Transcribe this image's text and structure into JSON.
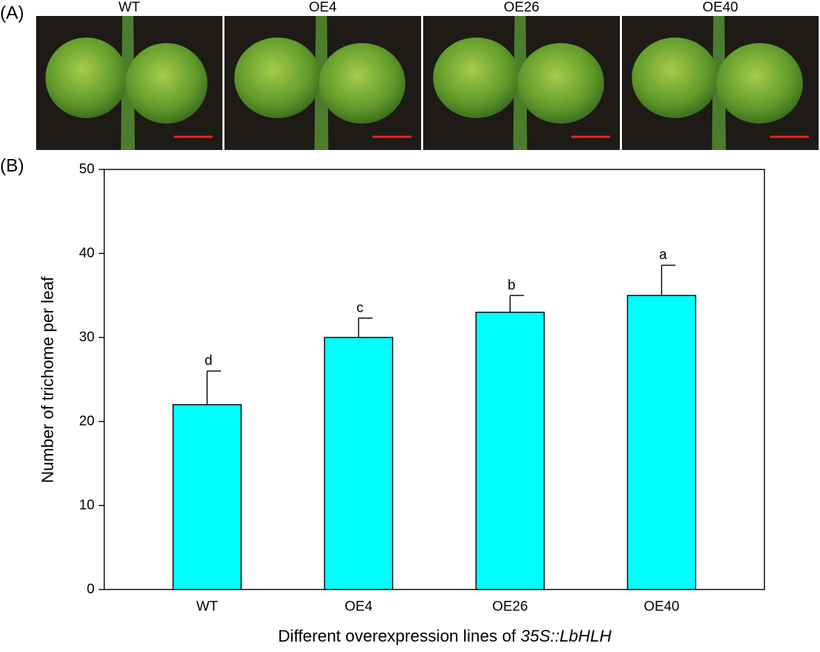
{
  "panel_a": {
    "label": "(A)",
    "images": [
      "WT",
      "OE4",
      "OE26",
      "OE40"
    ]
  },
  "chart_data": {
    "type": "bar",
    "panel_label": "(B)",
    "ylabel": "Number of trichome per leaf",
    "xlabel": [
      "Different overexpression lines of",
      "35S::LbHLH"
    ],
    "categories": [
      "WT",
      "OE4",
      "OE26",
      "OE40"
    ],
    "values": [
      22,
      30,
      33,
      35
    ],
    "errors": [
      4,
      2.3,
      2,
      3.6
    ],
    "annotations": [
      "d",
      "c",
      "b",
      "a"
    ],
    "color": "#00ffff",
    "ylim": [
      0,
      50
    ],
    "yticks": [
      0,
      10,
      20,
      30,
      40,
      50
    ],
    "grid": false
  }
}
